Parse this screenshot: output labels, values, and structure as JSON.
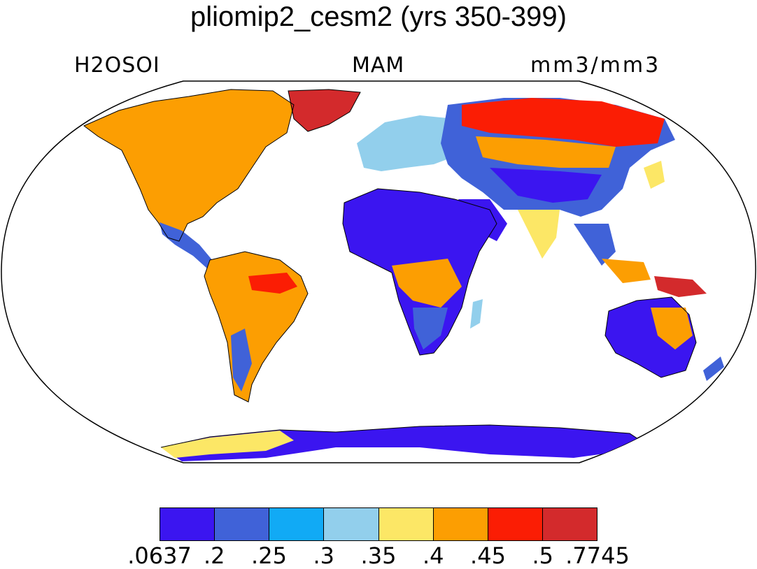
{
  "title": "pliomip2_cesm2 (yrs 350-399)",
  "variable": "H2OSOI",
  "season": "MAM",
  "units": "mm3/mm3",
  "legend": {
    "colors": [
      "#3b15f0",
      "#4062d8",
      "#11aaf5",
      "#92cfec",
      "#fce766",
      "#fc9e02",
      "#fb1d04",
      "#d32a2c"
    ],
    "labels": [
      ".0637",
      ".2",
      ".25",
      ".3",
      ".35",
      ".4",
      ".45",
      ".5",
      ".7745"
    ]
  }
}
